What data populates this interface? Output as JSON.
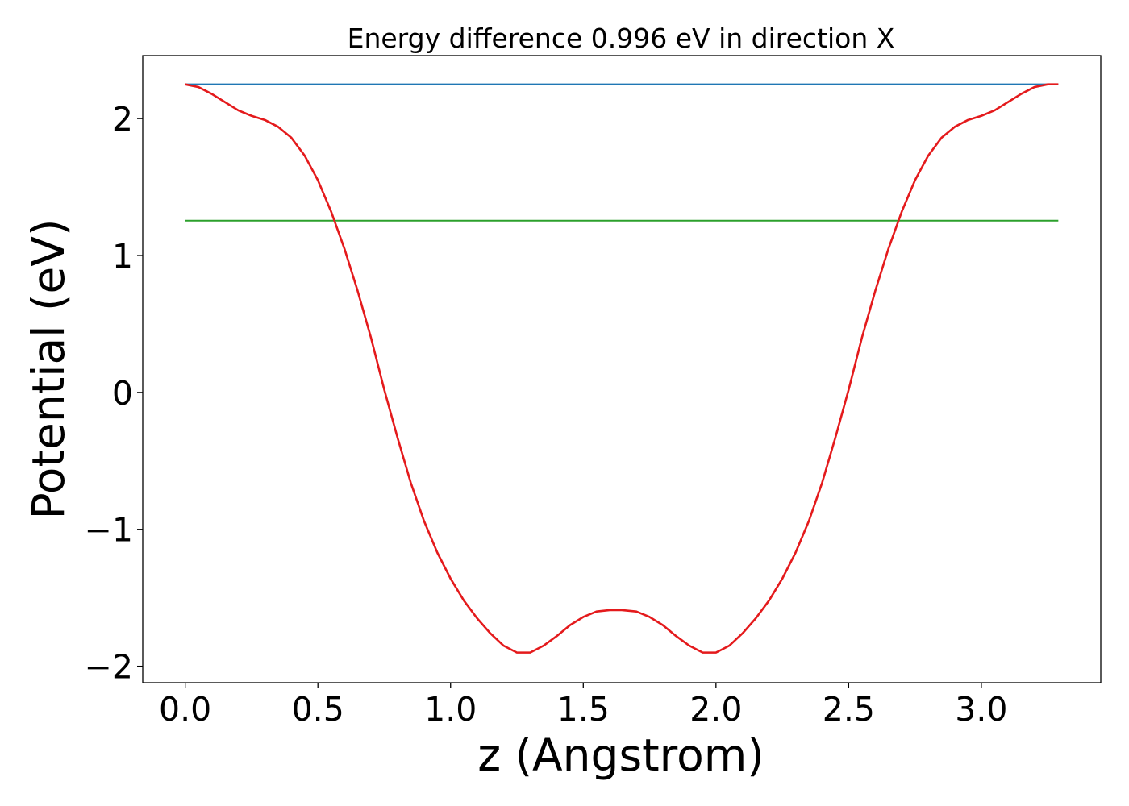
{
  "chart_data": {
    "type": "line",
    "title": "Energy difference 0.996 eV in direction X",
    "xlabel": "z (Angstrom)",
    "ylabel": "Potential (eV)",
    "xlim": [
      -0.16,
      3.45
    ],
    "ylim": [
      -2.12,
      2.46
    ],
    "xticks": [
      0.0,
      0.5,
      1.0,
      1.5,
      2.0,
      2.5,
      3.0
    ],
    "xtick_labels": [
      "0.0",
      "0.5",
      "1.0",
      "1.5",
      "2.0",
      "2.5",
      "3.0"
    ],
    "yticks": [
      -2,
      -1,
      0,
      1,
      2
    ],
    "ytick_labels": [
      "−2",
      "−1",
      "0",
      "1",
      "2"
    ],
    "grid": false,
    "legend": "none",
    "series": [
      {
        "color": "#1f77b4",
        "x": [
          0.0,
          3.29
        ],
        "y": [
          2.25,
          2.25
        ]
      },
      {
        "color": "#2ca02c",
        "x": [
          0.0,
          3.29
        ],
        "y": [
          1.255,
          1.255
        ]
      },
      {
        "color": "#e41a1c",
        "x": [
          0.0,
          0.05,
          0.1,
          0.15,
          0.2,
          0.25,
          0.3,
          0.35,
          0.4,
          0.45,
          0.5,
          0.55,
          0.6,
          0.65,
          0.7,
          0.75,
          0.8,
          0.85,
          0.9,
          0.95,
          1.0,
          1.05,
          1.1,
          1.15,
          1.2,
          1.25,
          1.3,
          1.35,
          1.4,
          1.45,
          1.5,
          1.55,
          1.6,
          1.645,
          1.7,
          1.75,
          1.8,
          1.85,
          1.9,
          1.95,
          2.0,
          2.05,
          2.1,
          2.15,
          2.2,
          2.25,
          2.3,
          2.35,
          2.4,
          2.45,
          2.5,
          2.55,
          2.6,
          2.65,
          2.7,
          2.75,
          2.8,
          2.85,
          2.9,
          2.95,
          3.0,
          3.05,
          3.1,
          3.15,
          3.2,
          3.25,
          3.29
        ],
        "y": [
          2.25,
          2.23,
          2.18,
          2.12,
          2.06,
          2.02,
          1.99,
          1.94,
          1.86,
          1.73,
          1.55,
          1.32,
          1.05,
          0.74,
          0.4,
          0.02,
          -0.33,
          -0.66,
          -0.94,
          -1.17,
          -1.36,
          -1.52,
          -1.65,
          -1.76,
          -1.85,
          -1.9,
          -1.9,
          -1.85,
          -1.78,
          -1.7,
          -1.64,
          -1.6,
          -1.59,
          -1.59,
          -1.6,
          -1.64,
          -1.7,
          -1.78,
          -1.85,
          -1.9,
          -1.9,
          -1.85,
          -1.76,
          -1.65,
          -1.52,
          -1.36,
          -1.17,
          -0.94,
          -0.66,
          -0.33,
          0.02,
          0.4,
          0.74,
          1.05,
          1.32,
          1.55,
          1.73,
          1.86,
          1.94,
          1.99,
          2.02,
          2.06,
          2.12,
          2.18,
          2.23,
          2.25,
          2.25
        ]
      }
    ]
  }
}
